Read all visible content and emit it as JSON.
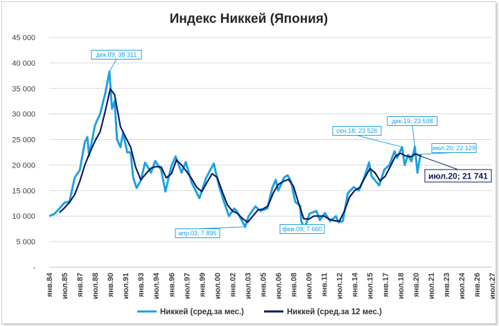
{
  "chart_data": {
    "type": "line",
    "title": "Индекс Никкей (Япония)",
    "xlabel": "",
    "ylabel": "",
    "ylim": [
      0,
      45000
    ],
    "y_ticks": [
      "-",
      "5 000",
      "10 000",
      "15 000",
      "20 000",
      "25 000",
      "30 000",
      "35 000",
      "40 000",
      "45 000"
    ],
    "x_ticks": [
      "янв.84",
      "июл.85",
      "янв.87",
      "июл.88",
      "янв.90",
      "июл.91",
      "янв.93",
      "июл.94",
      "янв.96",
      "июл.97",
      "янв.99",
      "июл.00",
      "янв.02",
      "июл.03",
      "янв.05",
      "июл.06",
      "янв.08",
      "июл.09",
      "янв.11",
      "июл.12",
      "янв.14",
      "июл.15",
      "янв.17",
      "июл.18",
      "янв.20",
      "июл.21",
      "янв.23",
      "июл.24",
      "янв.26",
      "июл.27"
    ],
    "grid": true,
    "legend_position": "bottom",
    "series": [
      {
        "name": "Никкей (сред.за мес.)",
        "color": "#1ba1e2",
        "points": [
          [
            "1984-01",
            10000
          ],
          [
            "1984-07",
            10400
          ],
          [
            "1985-01",
            11500
          ],
          [
            "1985-07",
            12600
          ],
          [
            "1986-01",
            12900
          ],
          [
            "1986-07",
            17500
          ],
          [
            "1987-01",
            19000
          ],
          [
            "1987-07",
            24500
          ],
          [
            "1987-10",
            25500
          ],
          [
            "1987-12",
            21800
          ],
          [
            "1988-07",
            27800
          ],
          [
            "1989-01",
            30000
          ],
          [
            "1989-07",
            34000
          ],
          [
            "1989-12",
            38311
          ],
          [
            "1990-03",
            31000
          ],
          [
            "1990-06",
            32500
          ],
          [
            "1990-09",
            25000
          ],
          [
            "1991-01",
            23500
          ],
          [
            "1991-04",
            26300
          ],
          [
            "1991-09",
            22500
          ],
          [
            "1992-01",
            22500
          ],
          [
            "1992-04",
            17500
          ],
          [
            "1992-08",
            15500
          ],
          [
            "1993-01",
            17000
          ],
          [
            "1993-06",
            20500
          ],
          [
            "1994-01",
            18500
          ],
          [
            "1994-06",
            20800
          ],
          [
            "1995-01",
            19000
          ],
          [
            "1995-06",
            14800
          ],
          [
            "1996-01",
            19800
          ],
          [
            "1996-06",
            21700
          ],
          [
            "1997-01",
            18500
          ],
          [
            "1997-06",
            20600
          ],
          [
            "1998-01",
            16500
          ],
          [
            "1998-10",
            13500
          ],
          [
            "1999-06",
            17500
          ],
          [
            "2000-03",
            20300
          ],
          [
            "2000-09",
            16000
          ],
          [
            "2001-03",
            12800
          ],
          [
            "2001-09",
            10000
          ],
          [
            "2002-03",
            11500
          ],
          [
            "2002-06",
            11000
          ],
          [
            "2003-04",
            7895
          ],
          [
            "2003-08",
            10000
          ],
          [
            "2004-04",
            11900
          ],
          [
            "2004-10",
            11000
          ],
          [
            "2005-06",
            11500
          ],
          [
            "2005-12",
            15500
          ],
          [
            "2006-04",
            17100
          ],
          [
            "2006-07",
            15000
          ],
          [
            "2007-02",
            17600
          ],
          [
            "2007-06",
            18000
          ],
          [
            "2007-10",
            16800
          ],
          [
            "2008-03",
            12800
          ],
          [
            "2008-09",
            12000
          ],
          [
            "2008-10",
            9000
          ],
          [
            "2009-02",
            7660
          ],
          [
            "2009-08",
            10500
          ],
          [
            "2010-04",
            11000
          ],
          [
            "2010-08",
            9200
          ],
          [
            "2011-02",
            10600
          ],
          [
            "2011-08",
            9000
          ],
          [
            "2012-03",
            10000
          ],
          [
            "2012-06",
            8800
          ],
          [
            "2012-11",
            9000
          ],
          [
            "2013-05",
            14500
          ],
          [
            "2013-12",
            15700
          ],
          [
            "2014-06",
            15000
          ],
          [
            "2014-12",
            17400
          ],
          [
            "2015-06",
            20500
          ],
          [
            "2015-09",
            17800
          ],
          [
            "2016-01",
            17000
          ],
          [
            "2016-06",
            16000
          ],
          [
            "2016-12",
            19100
          ],
          [
            "2017-06",
            20000
          ],
          [
            "2017-12",
            22700
          ],
          [
            "2018-03",
            21400
          ],
          [
            "2018-09",
            23526
          ],
          [
            "2018-12",
            20000
          ],
          [
            "2019-04",
            22000
          ],
          [
            "2019-08",
            20700
          ],
          [
            "2019-12",
            23598
          ],
          [
            "2020-03",
            18500
          ],
          [
            "2020-05",
            20500
          ],
          [
            "2020-07",
            22129
          ]
        ]
      },
      {
        "name": "Никкей (сред.за 12 мес.)",
        "color": "#0b1a5c",
        "points": [
          [
            "1985-01",
            10700
          ],
          [
            "1985-07",
            11600
          ],
          [
            "1986-01",
            12700
          ],
          [
            "1986-07",
            14200
          ],
          [
            "1987-01",
            16800
          ],
          [
            "1987-07",
            20000
          ],
          [
            "1988-01",
            22500
          ],
          [
            "1988-07",
            24700
          ],
          [
            "1989-01",
            26500
          ],
          [
            "1989-07",
            30500
          ],
          [
            "1990-01",
            34900
          ],
          [
            "1990-06",
            33800
          ],
          [
            "1991-01",
            27500
          ],
          [
            "1991-07",
            25500
          ],
          [
            "1992-01",
            23500
          ],
          [
            "1992-07",
            19500
          ],
          [
            "1993-01",
            17100
          ],
          [
            "1993-07",
            18300
          ],
          [
            "1994-01",
            19400
          ],
          [
            "1994-07",
            19700
          ],
          [
            "1995-01",
            19600
          ],
          [
            "1995-07",
            17500
          ],
          [
            "1996-01",
            18300
          ],
          [
            "1996-07",
            21000
          ],
          [
            "1997-01",
            20000
          ],
          [
            "1997-07",
            18700
          ],
          [
            "1998-01",
            17300
          ],
          [
            "1998-07",
            15600
          ],
          [
            "1999-01",
            14800
          ],
          [
            "1999-07",
            16600
          ],
          [
            "2000-01",
            18300
          ],
          [
            "2000-07",
            17600
          ],
          [
            "2001-01",
            14800
          ],
          [
            "2001-07",
            12200
          ],
          [
            "2002-01",
            11000
          ],
          [
            "2002-07",
            10500
          ],
          [
            "2003-01",
            9500
          ],
          [
            "2003-07",
            8800
          ],
          [
            "2004-01",
            10000
          ],
          [
            "2004-07",
            11200
          ],
          [
            "2005-01",
            11400
          ],
          [
            "2005-07",
            12000
          ],
          [
            "2006-01",
            14500
          ],
          [
            "2006-07",
            16200
          ],
          [
            "2007-01",
            16800
          ],
          [
            "2007-07",
            17200
          ],
          [
            "2008-01",
            15800
          ],
          [
            "2008-07",
            12500
          ],
          [
            "2009-01",
            9500
          ],
          [
            "2009-07",
            9400
          ],
          [
            "2010-01",
            10000
          ],
          [
            "2010-07",
            10000
          ],
          [
            "2011-01",
            10000
          ],
          [
            "2011-07",
            9400
          ],
          [
            "2012-01",
            9100
          ],
          [
            "2012-07",
            9000
          ],
          [
            "2013-01",
            11000
          ],
          [
            "2013-07",
            13700
          ],
          [
            "2014-01",
            15000
          ],
          [
            "2014-07",
            15600
          ],
          [
            "2015-01",
            17500
          ],
          [
            "2015-07",
            19300
          ],
          [
            "2016-01",
            18500
          ],
          [
            "2016-07",
            16900
          ],
          [
            "2017-01",
            17800
          ],
          [
            "2017-07",
            19700
          ],
          [
            "2018-01",
            21700
          ],
          [
            "2018-07",
            22300
          ],
          [
            "2019-01",
            21800
          ],
          [
            "2019-07",
            21600
          ],
          [
            "2020-01",
            22200
          ],
          [
            "2020-07",
            21741
          ]
        ]
      }
    ],
    "annotations": [
      {
        "label": "дек.89;  38 311",
        "style": "light"
      },
      {
        "label": "апр.03;  7 895",
        "style": "light"
      },
      {
        "label": "фев.09;  7 660",
        "style": "light"
      },
      {
        "label": "сен.18;  23 526",
        "style": "light"
      },
      {
        "label": "дек.19;  23 598",
        "style": "light"
      },
      {
        "label": "июл.20;  22 129",
        "style": "light"
      },
      {
        "label": "июл.20;  21 741",
        "style": "dark"
      }
    ]
  }
}
